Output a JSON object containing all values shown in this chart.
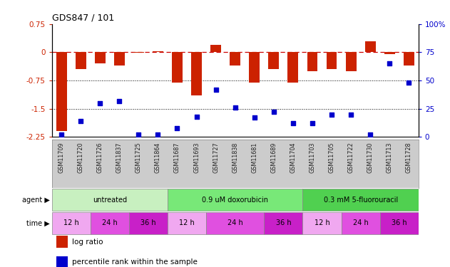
{
  "title": "GDS847 / 101",
  "samples": [
    "GSM11709",
    "GSM11720",
    "GSM11726",
    "GSM11837",
    "GSM11725",
    "GSM11864",
    "GSM11687",
    "GSM11693",
    "GSM11727",
    "GSM11838",
    "GSM11681",
    "GSM11689",
    "GSM11704",
    "GSM11703",
    "GSM11705",
    "GSM11722",
    "GSM11730",
    "GSM11713",
    "GSM11728"
  ],
  "log_ratio": [
    -2.1,
    -0.45,
    -0.3,
    -0.35,
    -0.02,
    0.02,
    -0.8,
    -1.15,
    0.2,
    -0.35,
    -0.8,
    -0.45,
    -0.8,
    -0.5,
    -0.45,
    -0.5,
    0.3,
    -0.05,
    -0.35
  ],
  "percentile_rank": [
    2,
    14,
    30,
    32,
    2,
    2,
    8,
    18,
    42,
    26,
    17,
    22,
    12,
    12,
    20,
    20,
    2,
    65,
    48
  ],
  "ylim_left": [
    -2.25,
    0.75
  ],
  "ylim_right": [
    0,
    100
  ],
  "left_ticks": [
    0.75,
    0.0,
    -0.75,
    -1.5,
    -2.25
  ],
  "left_tick_labels": [
    "0.75",
    "0",
    "-0.75",
    "-1.5",
    "-2.25"
  ],
  "right_ticks": [
    0,
    25,
    50,
    75,
    100
  ],
  "right_tick_labels": [
    "0",
    "25",
    "50",
    "75",
    "100%"
  ],
  "agent_groups": [
    {
      "label": "untreated",
      "start": 0,
      "end": 6,
      "color": "#c8f0c0"
    },
    {
      "label": "0.9 uM doxorubicin",
      "start": 6,
      "end": 13,
      "color": "#78e878"
    },
    {
      "label": "0.3 mM 5-fluorouracil",
      "start": 13,
      "end": 19,
      "color": "#50d050"
    }
  ],
  "time_groups": [
    {
      "label": "12 h",
      "start": 0,
      "end": 2,
      "color": "#f0a8f0"
    },
    {
      "label": "24 h",
      "start": 2,
      "end": 4,
      "color": "#e050e0"
    },
    {
      "label": "36 h",
      "start": 4,
      "end": 6,
      "color": "#c820c8"
    },
    {
      "label": "12 h",
      "start": 6,
      "end": 8,
      "color": "#f0a8f0"
    },
    {
      "label": "24 h",
      "start": 8,
      "end": 11,
      "color": "#e050e0"
    },
    {
      "label": "36 h",
      "start": 11,
      "end": 13,
      "color": "#c820c8"
    },
    {
      "label": "12 h",
      "start": 13,
      "end": 15,
      "color": "#f0a8f0"
    },
    {
      "label": "24 h",
      "start": 15,
      "end": 17,
      "color": "#e050e0"
    },
    {
      "label": "36 h",
      "start": 17,
      "end": 19,
      "color": "#c820c8"
    }
  ],
  "bar_color": "#cc2200",
  "dot_color": "#0000cc",
  "hline0_color": "#cc0000",
  "hline_other_color": "#000000",
  "left_tick_color": "#cc2200",
  "right_tick_color": "#0000cc",
  "sample_bg_color": "#cccccc",
  "fig_width": 6.31,
  "fig_height": 3.75,
  "fig_dpi": 100
}
